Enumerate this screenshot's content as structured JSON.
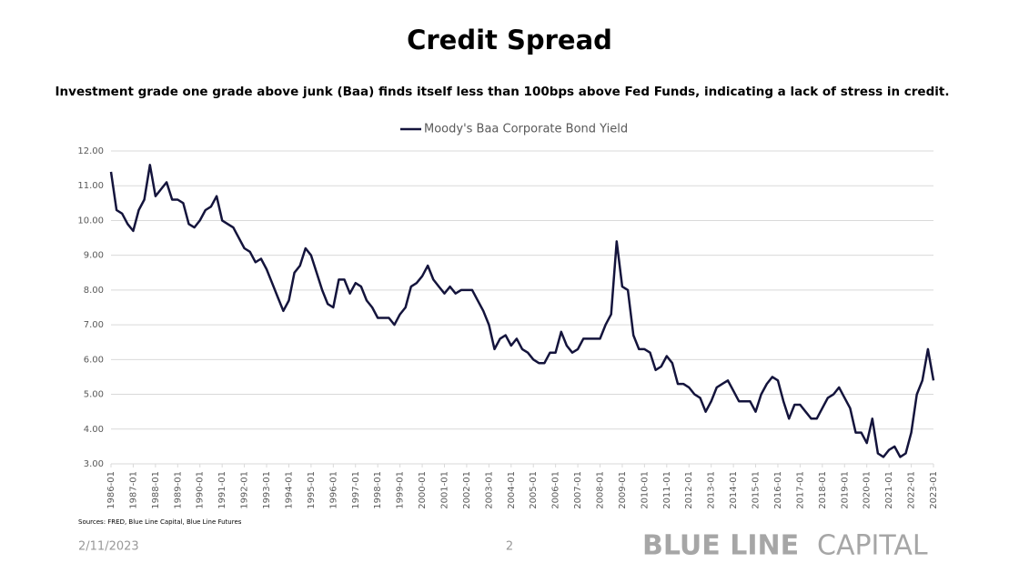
{
  "chart_data": {
    "type": "line",
    "title": "Credit Spread",
    "subtitle": "Investment grade one grade above junk (Baa) finds itself less than 100bps above Fed Funds, indicating a lack of stress in credit.",
    "x": [
      "1986-01",
      "1986-04",
      "1986-07",
      "1986-10",
      "1987-01",
      "1987-04",
      "1987-07",
      "1987-10",
      "1988-01",
      "1988-04",
      "1988-07",
      "1988-10",
      "1989-01",
      "1989-04",
      "1989-07",
      "1989-10",
      "1990-01",
      "1990-04",
      "1990-07",
      "1990-10",
      "1991-01",
      "1991-04",
      "1991-07",
      "1991-10",
      "1992-01",
      "1992-04",
      "1992-07",
      "1992-10",
      "1993-01",
      "1993-04",
      "1993-07",
      "1993-10",
      "1994-01",
      "1994-04",
      "1994-07",
      "1994-10",
      "1995-01",
      "1995-04",
      "1995-07",
      "1995-10",
      "1996-01",
      "1996-04",
      "1996-07",
      "1996-10",
      "1997-01",
      "1997-04",
      "1997-07",
      "1997-10",
      "1998-01",
      "1998-04",
      "1998-07",
      "1998-10",
      "1999-01",
      "1999-04",
      "1999-07",
      "1999-10",
      "2000-01",
      "2000-04",
      "2000-07",
      "2000-10",
      "2001-01",
      "2001-04",
      "2001-07",
      "2001-10",
      "2002-01",
      "2002-04",
      "2002-07",
      "2002-10",
      "2003-01",
      "2003-04",
      "2003-07",
      "2003-10",
      "2004-01",
      "2004-04",
      "2004-07",
      "2004-10",
      "2005-01",
      "2005-04",
      "2005-07",
      "2005-10",
      "2006-01",
      "2006-04",
      "2006-07",
      "2006-10",
      "2007-01",
      "2007-04",
      "2007-07",
      "2007-10",
      "2008-01",
      "2008-04",
      "2008-07",
      "2008-10",
      "2009-01",
      "2009-04",
      "2009-07",
      "2009-10",
      "2010-01",
      "2010-04",
      "2010-07",
      "2010-10",
      "2011-01",
      "2011-04",
      "2011-07",
      "2011-10",
      "2012-01",
      "2012-04",
      "2012-07",
      "2012-10",
      "2013-01",
      "2013-04",
      "2013-07",
      "2013-10",
      "2014-01",
      "2014-04",
      "2014-07",
      "2014-10",
      "2015-01",
      "2015-04",
      "2015-07",
      "2015-10",
      "2016-01",
      "2016-04",
      "2016-07",
      "2016-10",
      "2017-01",
      "2017-04",
      "2017-07",
      "2017-10",
      "2018-01",
      "2018-04",
      "2018-07",
      "2018-10",
      "2019-01",
      "2019-04",
      "2019-07",
      "2019-10",
      "2020-01",
      "2020-04",
      "2020-07",
      "2020-10",
      "2021-01",
      "2021-04",
      "2021-07",
      "2021-10",
      "2022-01",
      "2022-04",
      "2022-07",
      "2022-10",
      "2023-01"
    ],
    "series": [
      {
        "name": "Moody's Baa Corporate Bond Yield",
        "color": "#14143c",
        "values": [
          11.4,
          10.3,
          10.2,
          9.9,
          9.7,
          10.3,
          10.6,
          11.6,
          10.7,
          10.9,
          11.1,
          10.6,
          10.6,
          10.5,
          9.9,
          9.8,
          10.0,
          10.3,
          10.4,
          10.7,
          10.0,
          9.9,
          9.8,
          9.5,
          9.2,
          9.1,
          8.8,
          8.9,
          8.6,
          8.2,
          7.8,
          7.4,
          7.7,
          8.5,
          8.7,
          9.2,
          9.0,
          8.5,
          8.0,
          7.6,
          7.5,
          8.3,
          8.3,
          7.9,
          8.2,
          8.1,
          7.7,
          7.5,
          7.2,
          7.2,
          7.2,
          7.0,
          7.3,
          7.5,
          8.1,
          8.2,
          8.4,
          8.7,
          8.3,
          8.1,
          7.9,
          8.1,
          7.9,
          8.0,
          8.0,
          8.0,
          7.7,
          7.4,
          7.0,
          6.3,
          6.6,
          6.7,
          6.4,
          6.6,
          6.3,
          6.2,
          6.0,
          5.9,
          5.9,
          6.2,
          6.2,
          6.8,
          6.4,
          6.2,
          6.3,
          6.6,
          6.6,
          6.6,
          6.6,
          7.0,
          7.3,
          9.4,
          8.1,
          8.0,
          6.7,
          6.3,
          6.3,
          6.2,
          5.7,
          5.8,
          6.1,
          5.9,
          5.3,
          5.3,
          5.2,
          5.0,
          4.9,
          4.5,
          4.8,
          5.2,
          5.3,
          5.4,
          5.1,
          4.8,
          4.8,
          4.8,
          4.5,
          5.0,
          5.3,
          5.5,
          5.4,
          4.8,
          4.3,
          4.7,
          4.7,
          4.5,
          4.3,
          4.3,
          4.6,
          4.9,
          5.0,
          5.2,
          4.9,
          4.6,
          3.9,
          3.9,
          3.6,
          4.3,
          3.3,
          3.2,
          3.4,
          3.5,
          3.2,
          3.3,
          3.9,
          5.0,
          5.4,
          6.3,
          5.4
        ]
      }
    ],
    "xlim": [
      "1986-01",
      "2023-01"
    ],
    "xticks": [
      "1986-01",
      "1987-01",
      "1988-01",
      "1989-01",
      "1990-01",
      "1991-01",
      "1992-01",
      "1993-01",
      "1994-01",
      "1995-01",
      "1996-01",
      "1997-01",
      "1998-01",
      "1999-01",
      "2000-01",
      "2001-01",
      "2002-01",
      "2003-01",
      "2004-01",
      "2005-01",
      "2006-01",
      "2007-01",
      "2008-01",
      "2009-01",
      "2010-01",
      "2011-01",
      "2012-01",
      "2013-01",
      "2014-01",
      "2015-01",
      "2016-01",
      "2017-01",
      "2018-01",
      "2019-01",
      "2020-01",
      "2021-01",
      "2022-01",
      "2023-01"
    ],
    "ylim": [
      3,
      12
    ],
    "yticks": [
      {
        "value": 3,
        "label": "3.00"
      },
      {
        "value": 4,
        "label": "4.00"
      },
      {
        "value": 5,
        "label": "5.00"
      },
      {
        "value": 6,
        "label": "6.00"
      },
      {
        "value": 7,
        "label": "7.00"
      },
      {
        "value": 8,
        "label": "8.00"
      },
      {
        "value": 9,
        "label": "9.00"
      },
      {
        "value": 10,
        "label": "10.00"
      },
      {
        "value": 11,
        "label": "11.00"
      },
      {
        "value": 12,
        "label": "12.00"
      }
    ],
    "grid": true,
    "legend": "top"
  },
  "footer": {
    "source": "Sources: FRED, Blue Line Capital, Blue Line Futures",
    "date": "2/11/2023",
    "page": "2",
    "logo_bold": "BLUE LINE",
    "logo_light": "CAPITAL"
  }
}
